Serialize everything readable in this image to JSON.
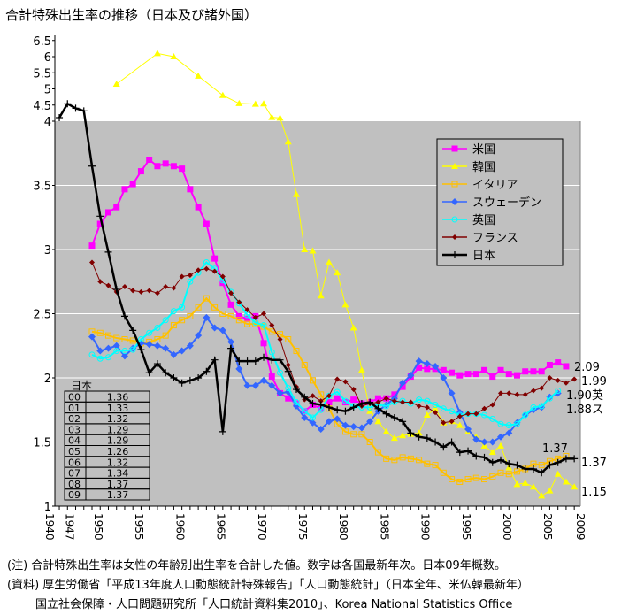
{
  "chart_data": {
    "type": "line",
    "title": "合計特殊出生率の推移（日本及び諸外国）",
    "xlabel": "",
    "ylabel": "",
    "y_ticks": [
      "1",
      "1.5",
      "2",
      "2.5",
      "3",
      "3.5",
      "4",
      "4.5",
      "5",
      "5.5",
      "6",
      "6.5"
    ],
    "x_ticks": [
      "1940",
      "1947",
      "1950",
      "1955",
      "1960",
      "1965",
      "1970",
      "1975",
      "1980",
      "1985",
      "1990",
      "1995",
      "2000",
      "2005",
      "2009"
    ],
    "categories_note": "categories are 1940, then 1947-2009 yearly",
    "grid": true,
    "legend_position": "right",
    "series": [
      {
        "name": "米国",
        "color": "#ff00ff",
        "marker": "square",
        "start_year": 1950,
        "values": [
          3.03,
          3.2,
          3.29,
          3.33,
          3.47,
          3.51,
          3.61,
          3.7,
          3.65,
          3.67,
          3.65,
          3.63,
          3.47,
          3.33,
          3.2,
          2.93,
          2.74,
          2.57,
          2.48,
          2.46,
          2.48,
          2.27,
          2.01,
          1.88,
          1.84,
          1.8,
          1.74,
          1.79,
          1.76,
          1.81,
          1.84,
          1.81,
          1.83,
          1.8,
          1.81,
          1.84,
          1.84,
          1.87,
          1.93,
          2.01,
          2.08,
          2.07,
          2.07,
          2.06,
          2.04,
          2.02,
          2.03,
          2.03,
          2.06,
          2.01,
          2.06,
          2.03,
          2.02,
          2.05,
          2.05,
          2.05,
          2.1,
          2.12,
          2.09
        ]
      },
      {
        "name": "韓国",
        "color": "#ffff00",
        "marker": "triangle",
        "start_year": 1953,
        "values": [
          5.15,
          null,
          null,
          null,
          null,
          6.1,
          null,
          6.0,
          null,
          null,
          5.4,
          null,
          null,
          4.8,
          null,
          4.55,
          null,
          4.53,
          4.54,
          4.12,
          4.1,
          3.84,
          3.43,
          3.0,
          2.99,
          2.64,
          2.9,
          2.82,
          2.57,
          2.39,
          2.06,
          1.74,
          1.66,
          1.58,
          1.53,
          1.55,
          1.56,
          1.57,
          1.71,
          1.76,
          1.65,
          1.66,
          1.63,
          1.58,
          1.54,
          1.47,
          1.42,
          1.47,
          1.3,
          1.17,
          1.18,
          1.15,
          1.08,
          1.12,
          1.25,
          1.19,
          1.15
        ]
      },
      {
        "name": "イタリア",
        "color": "#ffc000",
        "marker": "open-square",
        "start_year": 1950,
        "values": [
          2.36,
          2.35,
          2.33,
          2.31,
          2.3,
          2.29,
          2.27,
          2.28,
          2.3,
          2.33,
          2.41,
          2.45,
          2.48,
          2.55,
          2.62,
          2.55,
          2.5,
          2.48,
          2.45,
          2.42,
          2.42,
          2.4,
          2.36,
          2.34,
          2.3,
          2.21,
          2.1,
          1.98,
          1.87,
          1.76,
          1.64,
          1.58,
          1.56,
          1.56,
          1.5,
          1.42,
          1.37,
          1.36,
          1.38,
          1.37,
          1.36,
          1.33,
          1.32,
          1.26,
          1.21,
          1.19,
          1.21,
          1.22,
          1.21,
          1.23,
          1.26,
          1.25,
          1.27,
          1.29,
          1.33,
          1.32,
          1.35,
          1.37,
          1.39
        ]
      },
      {
        "name": "スウェーデン",
        "color": "#3366ff",
        "marker": "diamond",
        "start_year": 1950,
        "values": [
          2.32,
          2.21,
          2.23,
          2.25,
          2.17,
          2.23,
          2.27,
          2.26,
          2.25,
          2.23,
          2.18,
          2.21,
          2.25,
          2.33,
          2.47,
          2.39,
          2.37,
          2.28,
          2.07,
          1.94,
          1.94,
          1.98,
          1.94,
          1.88,
          1.89,
          1.78,
          1.69,
          1.65,
          1.6,
          1.66,
          1.68,
          1.63,
          1.62,
          1.61,
          1.66,
          1.74,
          1.79,
          1.84,
          1.96,
          2.02,
          2.13,
          2.11,
          2.09,
          2.0,
          1.88,
          1.73,
          1.6,
          1.52,
          1.5,
          1.5,
          1.54,
          1.57,
          1.65,
          1.71,
          1.75,
          1.77,
          1.85,
          1.88
        ]
      },
      {
        "name": "英国",
        "color": "#00ffff",
        "marker": "circle",
        "start_year": 1950,
        "values": [
          2.18,
          2.15,
          2.16,
          2.21,
          2.21,
          2.22,
          2.3,
          2.35,
          2.39,
          2.45,
          2.52,
          2.55,
          2.75,
          2.82,
          2.9,
          2.85,
          2.76,
          2.67,
          2.58,
          2.49,
          2.43,
          2.41,
          2.2,
          2.04,
          1.92,
          1.81,
          1.74,
          1.69,
          1.75,
          1.86,
          1.89,
          1.82,
          1.78,
          1.77,
          1.77,
          1.79,
          1.78,
          1.81,
          1.82,
          1.8,
          1.83,
          1.82,
          1.79,
          1.76,
          1.74,
          1.71,
          1.72,
          1.72,
          1.71,
          1.68,
          1.64,
          1.63,
          1.64,
          1.71,
          1.77,
          1.78,
          1.84,
          1.9
        ]
      },
      {
        "name": "フランス",
        "color": "#800000",
        "marker": "small-diamond",
        "start_year": 1950,
        "values": [
          2.9,
          2.75,
          2.72,
          2.67,
          2.71,
          2.68,
          2.67,
          2.68,
          2.66,
          2.71,
          2.7,
          2.79,
          2.8,
          2.84,
          2.85,
          2.83,
          2.79,
          2.66,
          2.59,
          2.53,
          2.47,
          2.5,
          2.41,
          2.3,
          2.1,
          1.93,
          1.83,
          1.86,
          1.82,
          1.86,
          1.99,
          1.97,
          1.91,
          1.78,
          1.8,
          1.81,
          1.84,
          1.82,
          1.81,
          1.81,
          1.78,
          1.77,
          1.73,
          1.65,
          1.66,
          1.7,
          1.72,
          1.72,
          1.76,
          1.79,
          1.88,
          1.88,
          1.87,
          1.87,
          1.9,
          1.92,
          2.0,
          1.98,
          1.96,
          1.99
        ]
      },
      {
        "name": "日本",
        "color": "#000000",
        "marker": "plus",
        "start_year": 1940,
        "values": [
          4.11,
          4.54,
          4.4,
          4.32,
          3.65,
          3.26,
          2.98,
          2.69,
          2.48,
          2.37,
          2.22,
          2.04,
          2.11,
          2.04,
          2.0,
          1.96,
          1.98,
          2.0,
          2.05,
          2.14,
          1.58,
          2.23,
          2.13,
          2.13,
          2.13,
          2.16,
          2.14,
          2.14,
          2.05,
          1.91,
          1.85,
          1.8,
          1.79,
          1.77,
          1.75,
          1.74,
          1.77,
          1.8,
          1.81,
          1.76,
          1.72,
          1.69,
          1.66,
          1.57,
          1.54,
          1.53,
          1.5,
          1.46,
          1.5,
          1.42,
          1.43,
          1.39,
          1.38,
          1.34,
          1.36,
          1.33,
          1.32,
          1.29,
          1.29,
          1.26,
          1.32,
          1.34,
          1.37,
          1.37
        ]
      }
    ],
    "annotations": [
      "2.09",
      "1.99",
      "1.90英",
      "1.88ス",
      "1.37",
      "1.37",
      "1.15"
    ],
    "inset_table": {
      "title": "日本",
      "rows": [
        [
          "00",
          "1.36"
        ],
        [
          "01",
          "1.33"
        ],
        [
          "02",
          "1.32"
        ],
        [
          "03",
          "1.29"
        ],
        [
          "04",
          "1.29"
        ],
        [
          "05",
          "1.26"
        ],
        [
          "06",
          "1.32"
        ],
        [
          "07",
          "1.34"
        ],
        [
          "08",
          "1.37"
        ],
        [
          "09",
          "1.37"
        ]
      ]
    }
  },
  "notes": [
    "(注) 合計特殊出生率は女性の年齢別出生率を合計した値。数字は各国最新年次。日本09年概数。",
    "(資料) 厚生労働省「平成13年度人口動態統計特殊報告」「人口動態統計」（日本全年、米仏韓最新年）",
    "国立社会保障・人口問題研究所「人口統計資料集2010」、Korea National Statistics Office"
  ]
}
